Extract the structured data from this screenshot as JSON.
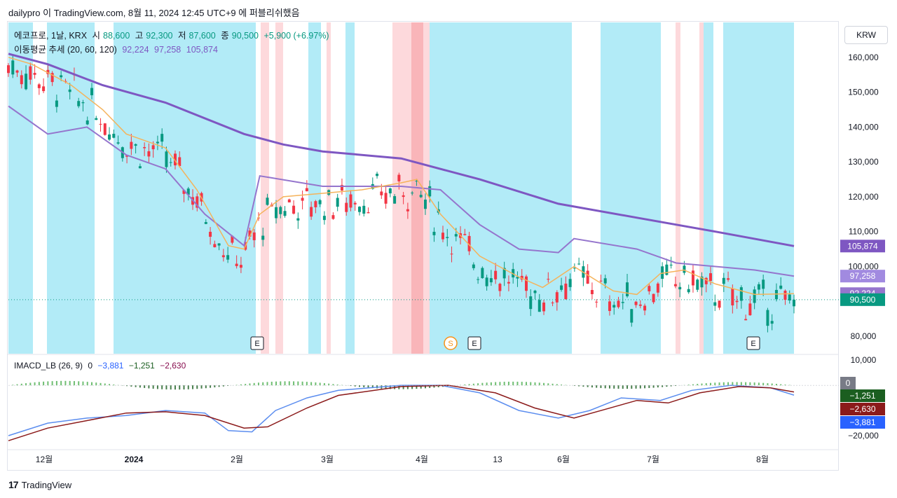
{
  "caption": "dailypro 이 TradingView.com, 8월 11, 2024 12:45 UTC+9 에 퍼블리쉬했음",
  "brand": "TradingView",
  "currency": "KRW",
  "legend": {
    "symbol": "에코프로, 1날, KRX",
    "open_label": "시",
    "open": "88,600",
    "high_label": "고",
    "high": "92,300",
    "low_label": "저",
    "low": "87,600",
    "close_label": "종",
    "close": "90,500",
    "change": "+5,900 (+6.97%)",
    "ma_label": "이동평균 추세 (20, 60, 120)",
    "ma20": "92,224",
    "ma60": "97,258",
    "ma120": "105,874"
  },
  "macd_legend": {
    "label": "IMACD_LB (26, 9)",
    "v0": "0",
    "v1": "−3,881",
    "v2": "−1,251",
    "v3": "−2,630"
  },
  "price_axis": {
    "ticks": [
      "160,000",
      "150,000",
      "140,000",
      "130,000",
      "120,000",
      "110,000",
      "100,000",
      "90,000",
      "80,000"
    ],
    "badges": [
      {
        "text": "105,874",
        "value": 105874,
        "color": "#7e57c2"
      },
      {
        "text": "97,258",
        "value": 97258,
        "color": "#a18ae0"
      },
      {
        "text": "92,224",
        "value": 92224,
        "color": "#9575cd"
      },
      {
        "text": "90,500",
        "value": 90500,
        "color": "#089981"
      }
    ]
  },
  "macd_axis": {
    "ticks": [
      "10,000",
      "−20,000"
    ],
    "badges": [
      {
        "text": "0",
        "color": "#787b86"
      },
      {
        "text": "−1,251",
        "color": "#1b5e20"
      },
      {
        "text": "−2,630",
        "color": "#8b1a1a"
      },
      {
        "text": "−3,881",
        "color": "#2962ff"
      }
    ]
  },
  "time_axis": [
    "12월",
    "2024",
    "2월",
    "3월",
    "4월",
    "13",
    "6월",
    "7월",
    "8월"
  ],
  "event_markers": [
    "E",
    "E",
    "S",
    "E",
    "E"
  ],
  "chart_data": {
    "type": "candlestick",
    "x_range": [
      "2023-11-20",
      "2024-08-09"
    ],
    "ylim": [
      75000,
      170000
    ],
    "series_names": [
      "이동평균 추세 (20, 60, 120)",
      "IMACD_LB (26, 9)"
    ],
    "last_bar": {
      "open": 88600,
      "high": 92300,
      "low": 87600,
      "close": 90500
    },
    "ma20_path": [
      [
        0,
        160000
      ],
      [
        0.03,
        158000
      ],
      [
        0.08,
        152000
      ],
      [
        0.12,
        145000
      ],
      [
        0.15,
        138000
      ],
      [
        0.2,
        134000
      ],
      [
        0.24,
        122000
      ],
      [
        0.28,
        106000
      ],
      [
        0.3,
        105000
      ],
      [
        0.32,
        115000
      ],
      [
        0.35,
        120000
      ],
      [
        0.4,
        121000
      ],
      [
        0.45,
        122000
      ],
      [
        0.5,
        124000
      ],
      [
        0.52,
        125000
      ],
      [
        0.55,
        115000
      ],
      [
        0.6,
        103000
      ],
      [
        0.65,
        97000
      ],
      [
        0.68,
        94000
      ],
      [
        0.7,
        97000
      ],
      [
        0.72,
        100000
      ],
      [
        0.77,
        93000
      ],
      [
        0.8,
        92000
      ],
      [
        0.83,
        98000
      ],
      [
        0.86,
        99000
      ],
      [
        0.9,
        95000
      ],
      [
        0.95,
        92000
      ],
      [
        1,
        92224
      ]
    ],
    "ma60_path": [
      [
        0,
        146000
      ],
      [
        0.05,
        138000
      ],
      [
        0.1,
        140000
      ],
      [
        0.15,
        132000
      ],
      [
        0.2,
        128000
      ],
      [
        0.25,
        115000
      ],
      [
        0.3,
        106000
      ],
      [
        0.32,
        126000
      ],
      [
        0.4,
        123000
      ],
      [
        0.5,
        123000
      ],
      [
        0.55,
        122000
      ],
      [
        0.6,
        112000
      ],
      [
        0.65,
        105000
      ],
      [
        0.7,
        104000
      ],
      [
        0.72,
        108000
      ],
      [
        0.8,
        105000
      ],
      [
        0.85,
        101000
      ],
      [
        0.9,
        100000
      ],
      [
        0.95,
        99000
      ],
      [
        1,
        97258
      ]
    ],
    "ma120_path": [
      [
        0,
        161000
      ],
      [
        0.05,
        158000
      ],
      [
        0.12,
        152000
      ],
      [
        0.2,
        147000
      ],
      [
        0.3,
        138000
      ],
      [
        0.35,
        135000
      ],
      [
        0.4,
        133000
      ],
      [
        0.5,
        131000
      ],
      [
        0.6,
        125000
      ],
      [
        0.7,
        118000
      ],
      [
        0.8,
        114000
      ],
      [
        0.9,
        110000
      ],
      [
        1,
        105874
      ]
    ],
    "macd_series": [
      {
        "name": "macd",
        "color": "#2962ff",
        "last": -3881
      },
      {
        "name": "signal",
        "color": "#8b1a1a",
        "last": -2630
      },
      {
        "name": "histogram",
        "color": "#1b5e20",
        "last": -1251
      }
    ]
  }
}
